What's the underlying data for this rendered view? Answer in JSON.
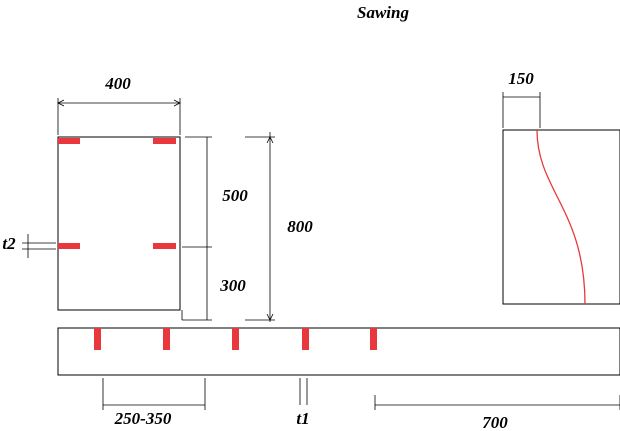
{
  "title": "Sawing",
  "dimensions": {
    "log_width": "400",
    "upper": "500",
    "lower": "300",
    "height": "800",
    "t2": "t2",
    "curve_width": "150",
    "spacing": "250-350",
    "t1": "t1",
    "end": "700"
  }
}
